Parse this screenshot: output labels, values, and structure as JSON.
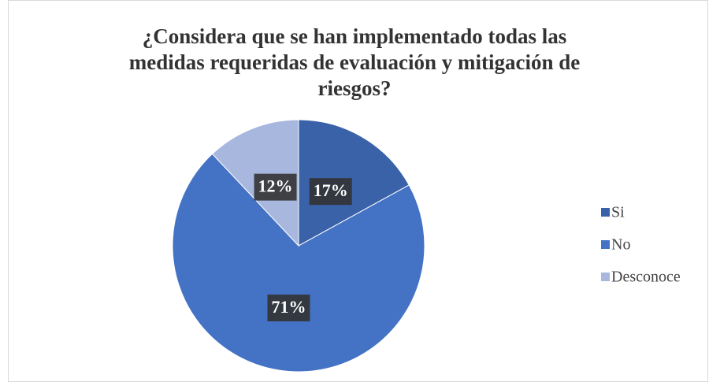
{
  "chart_data": {
    "type": "pie",
    "title": "¿Considera que se han implementado todas las medidas requeridas de evaluación y mitigación de riesgos?",
    "categories": [
      "Si",
      "No",
      "Desconoce"
    ],
    "values": [
      17,
      71,
      12
    ],
    "value_labels": [
      "17%",
      "71%",
      "12%"
    ],
    "colors": [
      "#3a62a8",
      "#4472c4",
      "#a7b7de"
    ],
    "legend": "right"
  }
}
